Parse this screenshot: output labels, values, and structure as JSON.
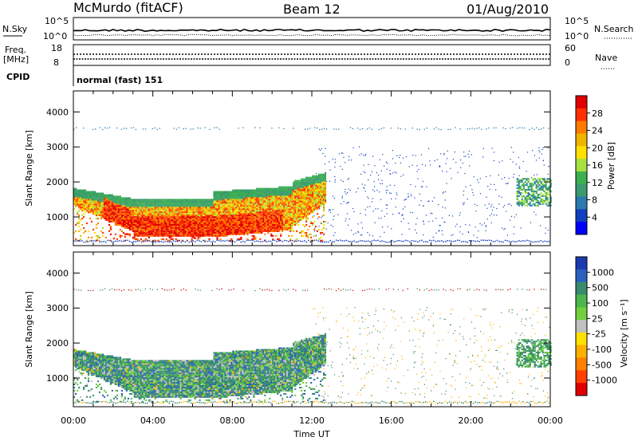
{
  "header": {
    "station": "McMurdo (fitACF)",
    "beam": "Beam 12",
    "date": "01/Aug/2010"
  },
  "panels": {
    "nsky": {
      "label": "N.Sky",
      "right_label": "N.Search",
      "ticks_left": [
        "10^5",
        "10^0"
      ],
      "ticks_right": [
        "10^5",
        "10^0"
      ]
    },
    "freq": {
      "label_line1": "Freq.",
      "label_line2": "[MHz]",
      "right_label": "Nave",
      "ticks_left": [
        "18",
        "8"
      ],
      "ticks_right": [
        "60",
        "0"
      ]
    },
    "cpid": {
      "label": "CPID",
      "value": "normal (fast) 151"
    }
  },
  "chart_data": [
    {
      "type": "heatmap",
      "panel": "power",
      "ylabel": "Slant Range [km]",
      "xlabel": "",
      "xlim": [
        "00:00",
        "24:00"
      ],
      "ylim": [
        180,
        4600
      ],
      "yticks": [
        1000,
        2000,
        3000,
        4000
      ],
      "colorbar": {
        "label": "Power [dB]",
        "ticks": [
          "28",
          "24",
          "20",
          "16",
          "12",
          "8",
          "4"
        ],
        "colors": [
          "#e00000",
          "#ff3000",
          "#ff7a00",
          "#f0b400",
          "#ffe000",
          "#a8e040",
          "#3cb050",
          "#3a9a70",
          "#2a7ab0",
          "#1040c0",
          "#0000ff"
        ]
      }
    },
    {
      "type": "heatmap",
      "panel": "velocity",
      "ylabel": "Slant Range [km]",
      "xlabel": "Time UT",
      "xlim": [
        "00:00",
        "24:00"
      ],
      "ylim": [
        180,
        4600
      ],
      "xticks": [
        "00:00",
        "04:00",
        "08:00",
        "12:00",
        "16:00",
        "20:00",
        "00:00"
      ],
      "yticks": [
        1000,
        2000,
        3000,
        4000
      ],
      "colorbar": {
        "label": "Velocity [m s⁻¹]",
        "ticks": [
          "1000",
          "500",
          "100",
          "25",
          "-25",
          "-100",
          "-500",
          "-1000"
        ],
        "colors": [
          "#1a3ab0",
          "#2a60c0",
          "#3a8a70",
          "#4cb84c",
          "#70d040",
          "#c0c0c0",
          "#ffe000",
          "#ffb000",
          "#ff8000",
          "#ff4000",
          "#e00000"
        ]
      }
    }
  ]
}
